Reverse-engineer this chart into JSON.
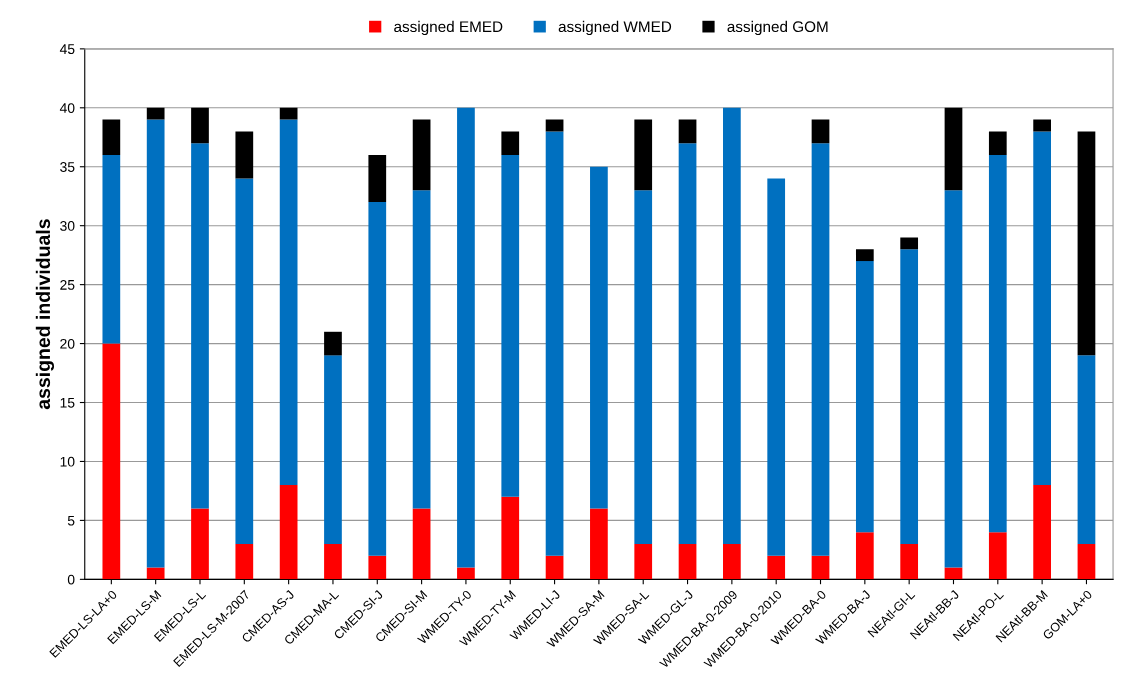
{
  "chart_data": {
    "type": "bar",
    "stacked": true,
    "ylabel": "assigned individuals",
    "categories": [
      "EMED-LS-LA+0",
      "EMED-LS-M",
      "EMED-LS-L",
      "EMED-LS-M-2007",
      "CMED-AS-J",
      "CMED-MA-L",
      "CMED-SI-J",
      "CMED-SI-M",
      "WMED-TY-0",
      "WMED-TY-M",
      "WMED-LI-J",
      "WMED-SA-M",
      "WMED-SA-L",
      "WMED-GL-J",
      "WMED-BA-0-2009",
      "WMED-BA-0-2010",
      "WMED-BA-0",
      "WMED-BA-J",
      "NEAtl-GI-L",
      "NEAtl-BB-J",
      "NEAtl-PO-L",
      "NEAtl-BB-M",
      "GOM-LA+0"
    ],
    "series": [
      {
        "name": "assigned EMED",
        "color": "#ff0000",
        "values": [
          20,
          1,
          6,
          3,
          8,
          3,
          2,
          6,
          1,
          7,
          2,
          6,
          3,
          3,
          3,
          2,
          2,
          4,
          3,
          1,
          4,
          8,
          3
        ]
      },
      {
        "name": "assigned WMED",
        "color": "#0070c0",
        "values": [
          16,
          38,
          31,
          31,
          31,
          16,
          30,
          27,
          39,
          29,
          36,
          29,
          30,
          34,
          37,
          32,
          35,
          23,
          25,
          32,
          32,
          30,
          16
        ]
      },
      {
        "name": "assigned GOM",
        "color": "#000000",
        "values": [
          3,
          1,
          3,
          4,
          1,
          2,
          4,
          6,
          0,
          2,
          1,
          0,
          6,
          2,
          0,
          0,
          2,
          1,
          1,
          7,
          2,
          1,
          19
        ]
      }
    ],
    "ylim": [
      0,
      45
    ],
    "yticks": [
      0,
      5,
      10,
      15,
      20,
      25,
      30,
      35,
      40,
      45
    ],
    "grid": "y",
    "legend": "top"
  }
}
